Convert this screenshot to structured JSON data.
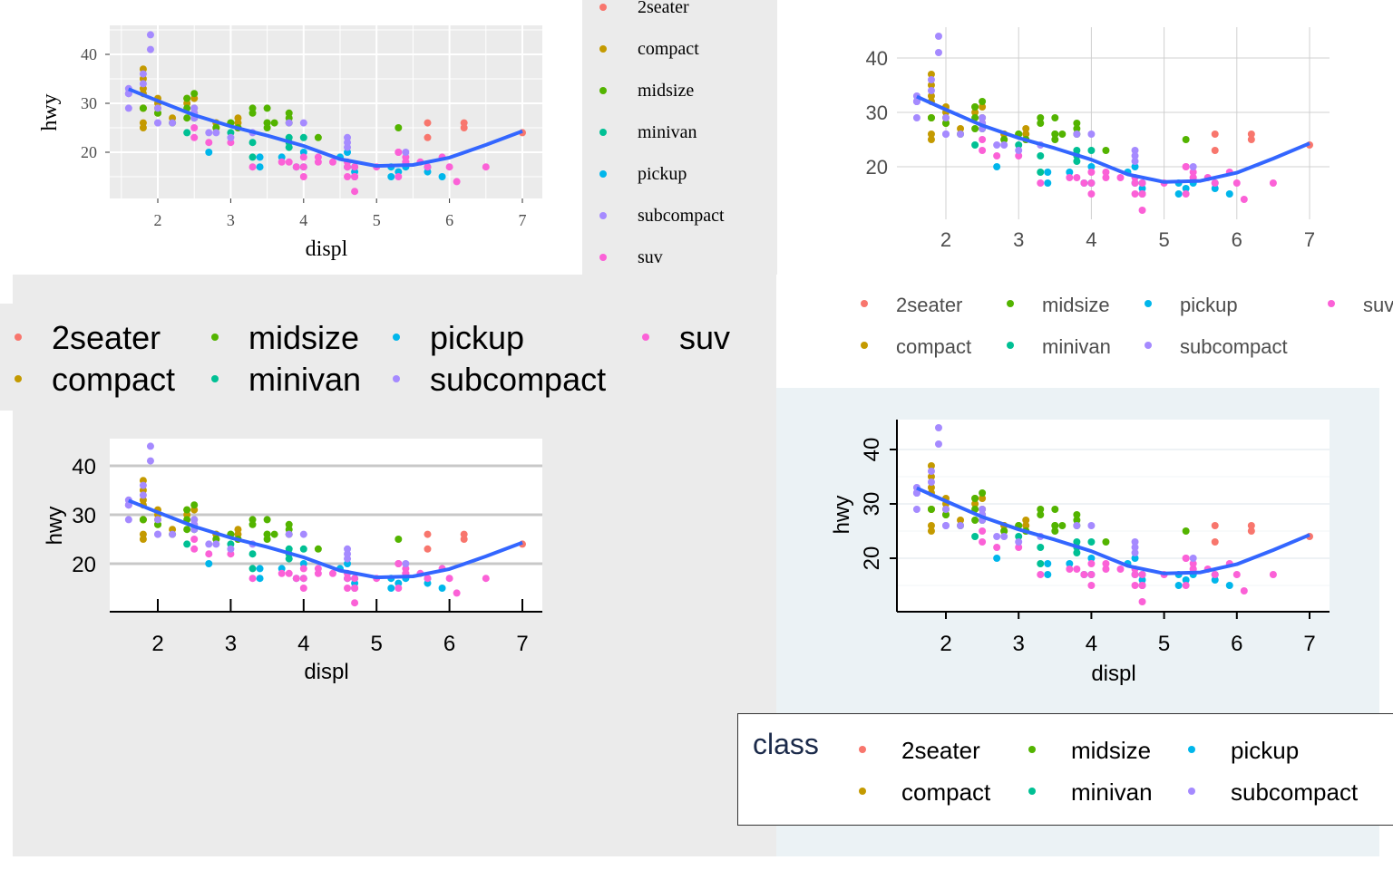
{
  "colors": {
    "2seater": "#F8766D",
    "compact": "#C49A00",
    "midsize": "#53B400",
    "minivan": "#00C094",
    "pickup": "#00B6EB",
    "subcompact": "#A58AFF",
    "suv": "#FB61D7",
    "smooth": "#3366FF"
  },
  "legend": {
    "title": "class",
    "items": [
      "2seater",
      "compact",
      "midsize",
      "minivan",
      "pickup",
      "subcompact",
      "suv"
    ]
  },
  "chart_data": [
    {
      "type": "scatter",
      "theme": "ggplot2 grey (serif)",
      "xlabel": "displ",
      "ylabel": "hwy",
      "xticks": [
        2,
        3,
        4,
        5,
        6,
        7
      ],
      "yticks": [
        20,
        30,
        40
      ],
      "xlim": [
        1.6,
        7.0
      ],
      "ylim": [
        12,
        44
      ],
      "grid": true,
      "legend_position": "right",
      "smooth": "loess"
    },
    {
      "type": "scatter",
      "theme": "minimal",
      "xlabel": "",
      "ylabel": "",
      "xticks": [
        2,
        3,
        4,
        5,
        6,
        7
      ],
      "yticks": [
        20,
        30,
        40
      ],
      "xlim": [
        1.6,
        7.0
      ],
      "ylim": [
        12,
        44
      ],
      "grid": true,
      "legend_position": "bottom",
      "smooth": "loess"
    },
    {
      "type": "scatter",
      "theme": "horizontal gridlines",
      "xlabel": "displ",
      "ylabel": "hwy",
      "xticks": [
        2,
        3,
        4,
        5,
        6,
        7
      ],
      "yticks": [
        20,
        30,
        40
      ],
      "xlim": [
        1.6,
        7.0
      ],
      "ylim": [
        12,
        44
      ],
      "grid": true,
      "legend_position": "top",
      "smooth": "loess"
    },
    {
      "type": "scatter",
      "theme": "stata-like",
      "xlabel": "displ",
      "ylabel": "hwy",
      "xticks": [
        2,
        3,
        4,
        5,
        6,
        7
      ],
      "yticks": [
        20,
        30,
        40
      ],
      "xlim": [
        1.6,
        7.0
      ],
      "ylim": [
        12,
        44
      ],
      "grid": true,
      "legend_position": "bottom",
      "smooth": "loess"
    }
  ],
  "points": [
    [
      1.8,
      29,
      "compact"
    ],
    [
      1.8,
      29,
      "compact"
    ],
    [
      2.0,
      31,
      "compact"
    ],
    [
      2.0,
      30,
      "compact"
    ],
    [
      2.8,
      26,
      "compact"
    ],
    [
      2.8,
      26,
      "compact"
    ],
    [
      3.1,
      27,
      "compact"
    ],
    [
      1.8,
      26,
      "compact"
    ],
    [
      1.8,
      25,
      "compact"
    ],
    [
      2.0,
      28,
      "compact"
    ],
    [
      2.8,
      25,
      "compact"
    ],
    [
      3.1,
      25,
      "compact"
    ],
    [
      2.2,
      27,
      "compact"
    ],
    [
      2.4,
      30,
      "compact"
    ],
    [
      2.5,
      28,
      "compact"
    ],
    [
      2.5,
      29,
      "compact"
    ],
    [
      1.8,
      37,
      "compact"
    ],
    [
      1.8,
      35,
      "compact"
    ],
    [
      1.8,
      33,
      "compact"
    ],
    [
      1.8,
      32,
      "compact"
    ],
    [
      2.0,
      29,
      "compact"
    ],
    [
      2.4,
      31,
      "compact"
    ],
    [
      2.5,
      31,
      "compact"
    ],
    [
      3.1,
      26,
      "compact"
    ],
    [
      5.7,
      26,
      "2seater"
    ],
    [
      5.7,
      23,
      "2seater"
    ],
    [
      6.2,
      26,
      "2seater"
    ],
    [
      6.2,
      25,
      "2seater"
    ],
    [
      7.0,
      24,
      "2seater"
    ],
    [
      2.4,
      24,
      "minivan"
    ],
    [
      3.0,
      24,
      "minivan"
    ],
    [
      3.3,
      22,
      "minivan"
    ],
    [
      3.3,
      19,
      "minivan"
    ],
    [
      3.8,
      22,
      "minivan"
    ],
    [
      3.8,
      21,
      "minivan"
    ],
    [
      4.0,
      23,
      "minivan"
    ],
    [
      3.8,
      23,
      "minivan"
    ],
    [
      2.4,
      29,
      "midsize"
    ],
    [
      2.5,
      27,
      "midsize"
    ],
    [
      3.3,
      29,
      "midsize"
    ],
    [
      3.3,
      28,
      "midsize"
    ],
    [
      3.5,
      29,
      "midsize"
    ],
    [
      3.5,
      26,
      "midsize"
    ],
    [
      3.8,
      27,
      "midsize"
    ],
    [
      3.8,
      28,
      "midsize"
    ],
    [
      4.2,
      23,
      "midsize"
    ],
    [
      5.3,
      25,
      "midsize"
    ],
    [
      2.5,
      32,
      "midsize"
    ],
    [
      2.4,
      31,
      "midsize"
    ],
    [
      3.5,
      26,
      "midsize"
    ],
    [
      3.0,
      26,
      "midsize"
    ],
    [
      2.2,
      26,
      "midsize"
    ],
    [
      2.4,
      27,
      "midsize"
    ],
    [
      3.0,
      26,
      "midsize"
    ],
    [
      3.5,
      25,
      "midsize"
    ],
    [
      3.8,
      26,
      "midsize"
    ],
    [
      1.8,
      29,
      "midsize"
    ],
    [
      2.0,
      28,
      "midsize"
    ],
    [
      2.8,
      25,
      "midsize"
    ],
    [
      3.6,
      26,
      "midsize"
    ],
    [
      3.1,
      25,
      "midsize"
    ],
    [
      2.7,
      20,
      "pickup"
    ],
    [
      3.4,
      19,
      "pickup"
    ],
    [
      4.0,
      17,
      "pickup"
    ],
    [
      4.7,
      17,
      "pickup"
    ],
    [
      4.7,
      16,
      "pickup"
    ],
    [
      5.2,
      17,
      "pickup"
    ],
    [
      5.7,
      17,
      "pickup"
    ],
    [
      5.9,
      15,
      "pickup"
    ],
    [
      5.4,
      17,
      "pickup"
    ],
    [
      4.7,
      15,
      "pickup"
    ],
    [
      5.7,
      16,
      "pickup"
    ],
    [
      5.2,
      15,
      "pickup"
    ],
    [
      4.0,
      20,
      "pickup"
    ],
    [
      3.4,
      17,
      "pickup"
    ],
    [
      4.6,
      17,
      "pickup"
    ],
    [
      4.5,
      19,
      "pickup"
    ],
    [
      5.3,
      16,
      "pickup"
    ],
    [
      4.6,
      20,
      "pickup"
    ],
    [
      3.7,
      19,
      "pickup"
    ],
    [
      3.9,
      17,
      "pickup"
    ],
    [
      5.3,
      20,
      "suv"
    ],
    [
      5.3,
      15,
      "suv"
    ],
    [
      5.3,
      20,
      "suv"
    ],
    [
      5.7,
      17,
      "suv"
    ],
    [
      6.0,
      17,
      "suv"
    ],
    [
      4.0,
      17,
      "suv"
    ],
    [
      4.6,
      17,
      "suv"
    ],
    [
      5.4,
      18,
      "suv"
    ],
    [
      6.5,
      17,
      "suv"
    ],
    [
      4.7,
      15,
      "suv"
    ],
    [
      5.9,
      19,
      "suv"
    ],
    [
      4.0,
      15,
      "suv"
    ],
    [
      4.7,
      12,
      "suv"
    ],
    [
      4.7,
      17,
      "suv"
    ],
    [
      4.7,
      15,
      "suv"
    ],
    [
      5.4,
      18,
      "suv"
    ],
    [
      4.2,
      18,
      "suv"
    ],
    [
      4.4,
      18,
      "suv"
    ],
    [
      6.1,
      14,
      "suv"
    ],
    [
      4.6,
      15,
      "suv"
    ],
    [
      5.0,
      17,
      "suv"
    ],
    [
      3.3,
      17,
      "suv"
    ],
    [
      3.7,
      18,
      "suv"
    ],
    [
      3.9,
      17,
      "suv"
    ],
    [
      2.5,
      23,
      "suv"
    ],
    [
      2.5,
      25,
      "suv"
    ],
    [
      2.7,
      22,
      "suv"
    ],
    [
      3.0,
      22,
      "suv"
    ],
    [
      4.0,
      19,
      "suv"
    ],
    [
      4.2,
      19,
      "suv"
    ],
    [
      5.4,
      19,
      "suv"
    ],
    [
      5.6,
      18,
      "suv"
    ],
    [
      3.8,
      18,
      "suv"
    ],
    [
      4.6,
      18,
      "suv"
    ],
    [
      1.6,
      33,
      "subcompact"
    ],
    [
      1.6,
      32,
      "subcompact"
    ],
    [
      1.6,
      32,
      "subcompact"
    ],
    [
      1.6,
      29,
      "subcompact"
    ],
    [
      1.6,
      32,
      "subcompact"
    ],
    [
      1.8,
      34,
      "subcompact"
    ],
    [
      1.8,
      36,
      "subcompact"
    ],
    [
      1.9,
      44,
      "subcompact"
    ],
    [
      1.9,
      41,
      "subcompact"
    ],
    [
      2.0,
      29,
      "subcompact"
    ],
    [
      2.0,
      26,
      "subcompact"
    ],
    [
      2.5,
      29,
      "subcompact"
    ],
    [
      2.5,
      28,
      "subcompact"
    ],
    [
      2.0,
      26,
      "subcompact"
    ],
    [
      2.2,
      26,
      "subcompact"
    ],
    [
      2.5,
      27,
      "subcompact"
    ],
    [
      2.7,
      24,
      "subcompact"
    ],
    [
      3.8,
      26,
      "subcompact"
    ],
    [
      4.0,
      26,
      "subcompact"
    ],
    [
      4.6,
      23,
      "subcompact"
    ],
    [
      4.6,
      22,
      "subcompact"
    ],
    [
      5.4,
      20,
      "subcompact"
    ],
    [
      4.6,
      21,
      "subcompact"
    ],
    [
      2.8,
      24,
      "subcompact"
    ],
    [
      3.0,
      23,
      "subcompact"
    ],
    [
      3.3,
      24,
      "subcompact"
    ]
  ],
  "smooth": [
    [
      1.6,
      32.9
    ],
    [
      2.0,
      30.5
    ],
    [
      2.5,
      27.6
    ],
    [
      3.0,
      25.3
    ],
    [
      3.5,
      23.4
    ],
    [
      4.0,
      21.3
    ],
    [
      4.5,
      18.6
    ],
    [
      5.0,
      17.2
    ],
    [
      5.5,
      17.4
    ],
    [
      6.0,
      18.9
    ],
    [
      6.5,
      21.5
    ],
    [
      7.0,
      24.3
    ]
  ]
}
